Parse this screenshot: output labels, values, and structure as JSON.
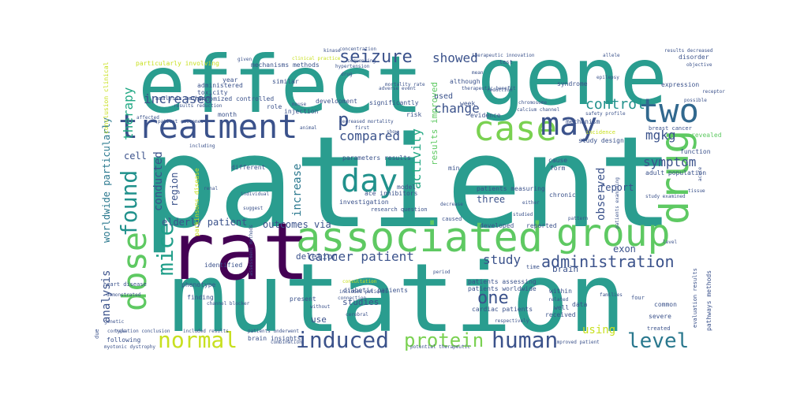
{
  "words": [
    {
      "text": "patient",
      "color": "#2a9d8f"
    },
    {
      "text": "mutation",
      "color": "#2a9d8f"
    },
    {
      "text": "effect",
      "color": "#2a9d8f"
    },
    {
      "text": "gene",
      "color": "#2a9d8f"
    },
    {
      "text": "rat",
      "color": "#440154"
    },
    {
      "text": "associated",
      "color": "#5ec962"
    },
    {
      "text": "treatment",
      "color": "#3b528b"
    },
    {
      "text": "group",
      "color": "#5ec962"
    },
    {
      "text": "drug",
      "color": "#5ec962"
    },
    {
      "text": "dose",
      "color": "#5ec962"
    },
    {
      "text": "two",
      "color": "#31688e"
    },
    {
      "text": "case",
      "color": "#7ad151"
    },
    {
      "text": "may",
      "color": "#3b528b"
    },
    {
      "text": "day",
      "color": "#21918c"
    },
    {
      "text": "found",
      "color": "#21918c"
    },
    {
      "text": "mice",
      "color": "#1f9e89"
    },
    {
      "text": "normal",
      "color": "#c8e020"
    },
    {
      "text": "human",
      "color": "#3b528b"
    },
    {
      "text": "induced",
      "color": "#3b528b"
    },
    {
      "text": "level",
      "color": "#2a788e"
    },
    {
      "text": "protein",
      "color": "#7ad151"
    },
    {
      "text": "seizure",
      "color": "#3b528b"
    },
    {
      "text": "one",
      "color": "#3b528b"
    },
    {
      "text": "administration",
      "color": "#3b528b"
    },
    {
      "text": "showed",
      "color": "#3b528b"
    },
    {
      "text": "change",
      "color": "#3b528b"
    },
    {
      "text": "compared",
      "color": "#3b528b"
    },
    {
      "text": "p",
      "color": "#3b528b"
    },
    {
      "text": "control",
      "color": "#21918c"
    },
    {
      "text": "increased",
      "color": "#3b528b"
    },
    {
      "text": "therapy",
      "color": "#22a884"
    },
    {
      "text": "cancer patient",
      "color": "#3b528b"
    },
    {
      "text": "symptom",
      "color": "#3b528b"
    },
    {
      "text": "mgkg",
      "color": "#3b528b"
    },
    {
      "text": "analysis",
      "color": "#3b528b"
    },
    {
      "text": "conducted",
      "color": "#3b528b"
    },
    {
      "text": "activity",
      "color": "#22a884"
    },
    {
      "text": "increase",
      "color": "#2a788e"
    },
    {
      "text": "observed",
      "color": "#3b528b"
    },
    {
      "text": "study",
      "color": "#3b528b"
    },
    {
      "text": "using",
      "color": "#c8e020"
    },
    {
      "text": "elderly patient",
      "color": "#3b528b"
    },
    {
      "text": "outcomes via",
      "color": "#3b528b"
    },
    {
      "text": "results improved",
      "color": "#5ec962"
    },
    {
      "text": "report",
      "color": "#3b528b"
    },
    {
      "text": "cell",
      "color": "#3b528b"
    },
    {
      "text": "region",
      "color": "#3b528b"
    },
    {
      "text": "three",
      "color": "#3b528b"
    },
    {
      "text": "exon",
      "color": "#3b528b"
    },
    {
      "text": "deletion",
      "color": "#3b528b"
    },
    {
      "text": "worldwide particularly",
      "color": "#2a788e"
    },
    {
      "text": "studies",
      "color": "#3b528b"
    },
    {
      "text": "use",
      "color": "#3b528b"
    },
    {
      "text": "brain",
      "color": "#3b528b"
    },
    {
      "text": "randomized controlled",
      "color": "#3b528b"
    },
    {
      "text": "mechanisms methods",
      "color": "#3b528b"
    },
    {
      "text": "particularly involving",
      "color": "#c8e020"
    },
    {
      "text": "analysis method",
      "color": "#3b528b"
    },
    {
      "text": "toxicity",
      "color": "#3b528b"
    },
    {
      "text": "injection",
      "color": "#3b528b"
    },
    {
      "text": "role",
      "color": "#3b528b"
    },
    {
      "text": "month",
      "color": "#3b528b"
    },
    {
      "text": "year",
      "color": "#3b528b"
    },
    {
      "text": "administered",
      "color": "#3b528b"
    },
    {
      "text": "similar",
      "color": "#3b528b"
    },
    {
      "text": "development",
      "color": "#3b528b"
    },
    {
      "text": "significantly",
      "color": "#3b528b"
    },
    {
      "text": "risk",
      "color": "#3b528b"
    },
    {
      "text": "used",
      "color": "#3b528b"
    },
    {
      "text": "week",
      "color": "#3b528b"
    },
    {
      "text": "evidence",
      "color": "#3b528b"
    },
    {
      "text": "although",
      "color": "#3b528b"
    },
    {
      "text": "syndrome",
      "color": "#3b528b"
    },
    {
      "text": "mechanism",
      "color": "#3b528b"
    },
    {
      "text": "study design",
      "color": "#3b528b"
    },
    {
      "text": "expression",
      "color": "#3b528b"
    },
    {
      "text": "breast cancer",
      "color": "#3b528b"
    },
    {
      "text": "revealed",
      "color": "#5ec962"
    },
    {
      "text": "function",
      "color": "#3b528b"
    },
    {
      "text": "adult population",
      "color": "#3b528b"
    },
    {
      "text": "disorder",
      "color": "#3b528b"
    },
    {
      "text": "parameters results",
      "color": "#3b528b"
    },
    {
      "text": "ace inhibitors",
      "color": "#3b528b"
    },
    {
      "text": "model",
      "color": "#3b528b"
    },
    {
      "text": "investigation",
      "color": "#3b528b"
    },
    {
      "text": "patients measuring",
      "color": "#3b528b"
    },
    {
      "text": "chronic",
      "color": "#3b528b"
    },
    {
      "text": "form",
      "color": "#3b528b"
    },
    {
      "text": "cause",
      "color": "#3b528b"
    },
    {
      "text": "min",
      "color": "#3b528b"
    },
    {
      "text": "different",
      "color": "#3b528b"
    },
    {
      "text": "parkinsons disease",
      "color": "#c8e020"
    },
    {
      "text": "identified",
      "color": "#3b528b"
    },
    {
      "text": "phenotype",
      "color": "#3b528b"
    },
    {
      "text": "finding",
      "color": "#3b528b"
    },
    {
      "text": "heart disease",
      "color": "#3b528b"
    },
    {
      "text": "diabetic patients",
      "color": "#3b528b"
    },
    {
      "text": "patients worldwide",
      "color": "#3b528b"
    },
    {
      "text": "patients assessing",
      "color": "#3b528b"
    },
    {
      "text": "cardiac patients",
      "color": "#3b528b"
    },
    {
      "text": "brain insights",
      "color": "#3b528b"
    },
    {
      "text": "following",
      "color": "#3b528b"
    },
    {
      "text": "myotonic dystrophy",
      "color": "#3b528b"
    },
    {
      "text": "pathways methods",
      "color": "#3b528b"
    },
    {
      "text": "evaluation results",
      "color": "#3b528b"
    },
    {
      "text": "treated",
      "color": "#3b528b"
    },
    {
      "text": "severe",
      "color": "#3b528b"
    },
    {
      "text": "common",
      "color": "#3b528b"
    },
    {
      "text": "received",
      "color": "#3b528b"
    },
    {
      "text": "within",
      "color": "#3b528b"
    },
    {
      "text": "data",
      "color": "#3b528b"
    },
    {
      "text": "developed",
      "color": "#3b528b"
    },
    {
      "text": "reported",
      "color": "#3b528b"
    },
    {
      "text": "present",
      "color": "#3b528b"
    },
    {
      "text": "well",
      "color": "#3b528b"
    },
    {
      "text": "conclusion clinical",
      "color": "#c8e020"
    },
    {
      "text": "concentration",
      "color": "#3b528b"
    },
    {
      "text": "therapeutic innovation",
      "color": "#3b528b"
    },
    {
      "text": "calcium channel",
      "color": "#3b528b"
    },
    {
      "text": "chromosome",
      "color": "#3b528b"
    },
    {
      "text": "results decreased",
      "color": "#3b528b"
    },
    {
      "text": "allele",
      "color": "#3b528b"
    },
    {
      "text": "test",
      "color": "#3b528b"
    },
    {
      "text": "epilepsy",
      "color": "#3b528b"
    },
    {
      "text": "channel blocker",
      "color": "#3b528b"
    },
    {
      "text": "individual",
      "color": "#3b528b"
    },
    {
      "text": "connection",
      "color": "#3b528b"
    },
    {
      "text": "period",
      "color": "#3b528b"
    },
    {
      "text": "research question",
      "color": "#3b528b"
    },
    {
      "text": "caused",
      "color": "#3b528b"
    },
    {
      "text": "adverse event",
      "color": "#3b528b"
    },
    {
      "text": "decreased mortality",
      "color": "#3b528b"
    },
    {
      "text": "first",
      "color": "#3b528b"
    },
    {
      "text": "show",
      "color": "#3b528b"
    },
    {
      "text": "animal",
      "color": "#3b528b"
    },
    {
      "text": "mouse",
      "color": "#3b528b"
    },
    {
      "text": "incidence",
      "color": "#c8e020"
    },
    {
      "text": "reduction",
      "color": "#3b528b"
    },
    {
      "text": "study examined",
      "color": "#3b528b"
    },
    {
      "text": "patients examining",
      "color": "#3b528b"
    },
    {
      "text": "pattern",
      "color": "#3b528b"
    },
    {
      "text": "improved patient",
      "color": "#3b528b"
    },
    {
      "text": "potential therapeutic",
      "color": "#3b528b"
    },
    {
      "text": "combination",
      "color": "#3b528b"
    },
    {
      "text": "included results",
      "color": "#3b528b"
    },
    {
      "text": "patients underwent",
      "color": "#3b528b"
    },
    {
      "text": "including",
      "color": "#3b528b"
    },
    {
      "text": "suggest",
      "color": "#3b528b"
    },
    {
      "text": "genetic",
      "color": "#3b528b"
    },
    {
      "text": "type",
      "color": "#3b528b"
    },
    {
      "text": "due",
      "color": "#3b528b"
    },
    {
      "text": "respectively",
      "color": "#3b528b"
    },
    {
      "text": "families",
      "color": "#3b528b"
    },
    {
      "text": "related",
      "color": "#3b528b"
    },
    {
      "text": "tissue",
      "color": "#3b528b"
    },
    {
      "text": "acute",
      "color": "#3b528b"
    },
    {
      "text": "possible",
      "color": "#3b528b"
    },
    {
      "text": "objective",
      "color": "#3b528b"
    },
    {
      "text": "safety profile",
      "color": "#3b528b"
    },
    {
      "text": "hypertension",
      "color": "#3b528b"
    },
    {
      "text": "mean",
      "color": "#3b528b"
    },
    {
      "text": "renal",
      "color": "#3b528b"
    },
    {
      "text": "results reduction",
      "color": "#3b528b"
    },
    {
      "text": "affected",
      "color": "#3b528b"
    },
    {
      "text": "patient outcomes",
      "color": "#3b528b"
    },
    {
      "text": "correlation conclusion",
      "color": "#3b528b"
    },
    {
      "text": "assessment methods",
      "color": "#3b528b"
    },
    {
      "text": "demonstrated",
      "color": "#3b528b"
    },
    {
      "text": "consultation",
      "color": "#c8e020"
    },
    {
      "text": "without",
      "color": "#3b528b"
    },
    {
      "text": "cerebral",
      "color": "#3b528b"
    },
    {
      "text": "decrease",
      "color": "#3b528b"
    },
    {
      "text": "studied",
      "color": "#3b528b"
    },
    {
      "text": "time",
      "color": "#3b528b"
    },
    {
      "text": "four",
      "color": "#3b528b"
    },
    {
      "text": "either",
      "color": "#3b528b"
    },
    {
      "text": "mortality rate",
      "color": "#3b528b"
    },
    {
      "text": "drug",
      "color": "#3b528b"
    },
    {
      "text": "level",
      "color": "#3b528b"
    },
    {
      "text": "given",
      "color": "#3b528b"
    },
    {
      "text": "included patients",
      "color": "#3b528b"
    },
    {
      "text": "clinical practice",
      "color": "#c8e020"
    },
    {
      "text": "therapeutic benefit",
      "color": "#3b528b"
    },
    {
      "text": "sequencing",
      "color": "#3b528b"
    },
    {
      "text": "kinase",
      "color": "#3b528b"
    },
    {
      "text": "receptor",
      "color": "#3b528b"
    }
  ]
}
